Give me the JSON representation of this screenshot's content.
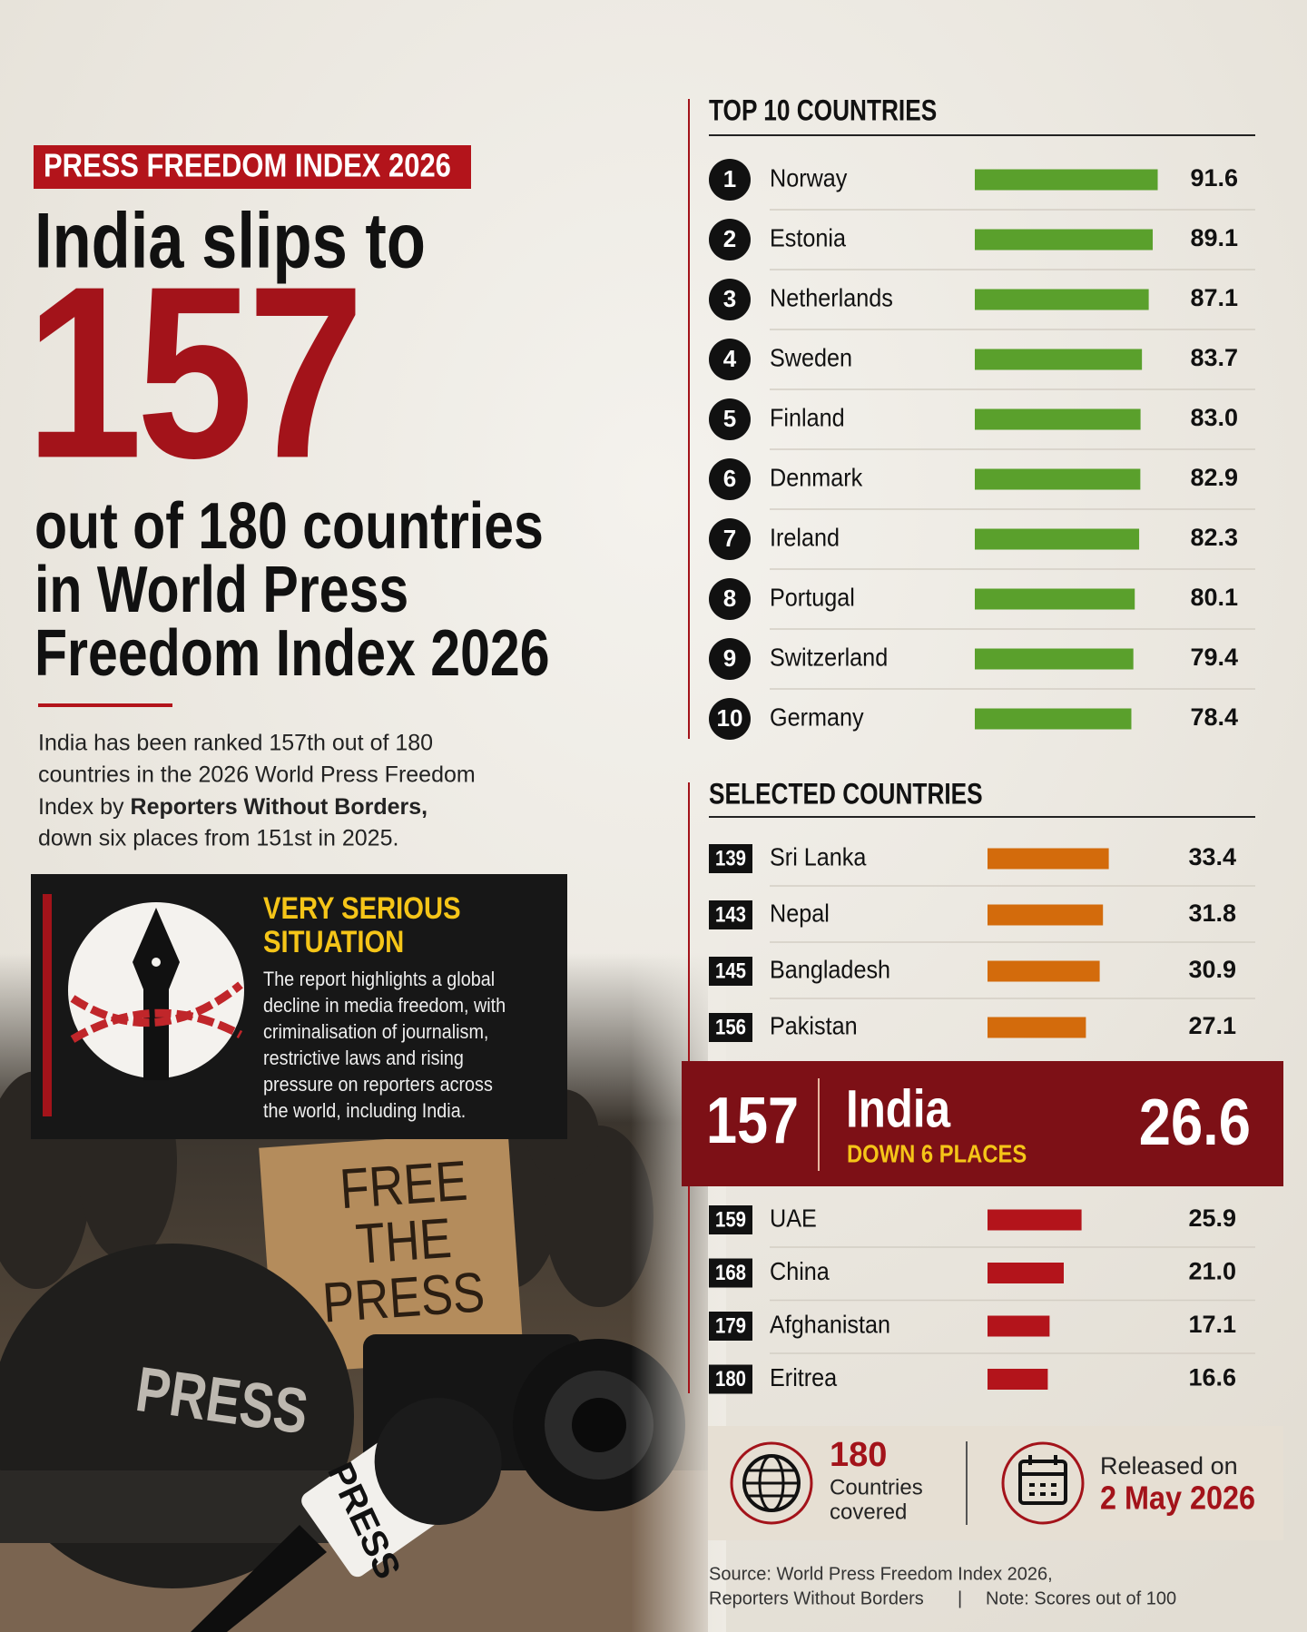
{
  "header": {
    "tag": "PRESS FREEDOM INDEX 2026",
    "headline_top": "India slips to",
    "rank": "157",
    "headline_bottom": [
      "out of 180 countries",
      "in World Press",
      "Freedom Index 2026"
    ]
  },
  "summary": [
    "India has been ranked 157th out of 180",
    "countries in the 2026 World Press Freedom",
    [
      "Index by",
      "Reporters Without Borders,"
    ],
    "down six places from 151st in 2025."
  ],
  "callout": {
    "title": [
      "VERY SERIOUS",
      "SITUATION"
    ],
    "text": [
      "The report highlights a global",
      "decline in media freedom, with",
      "criminalisation of journalism,",
      "restrictive laws and rising",
      "pressure on reporters across",
      "the world, including India."
    ]
  },
  "photo": {
    "sign": [
      "FREE",
      "THE",
      "PRESS"
    ],
    "helmet": "PRESS",
    "mic": "PRESS"
  },
  "top10": {
    "title": "TOP 10 COUNTRIES",
    "ranks": [
      1,
      2,
      3,
      4,
      5,
      6,
      7,
      8,
      9,
      10
    ],
    "countries": [
      "Norway",
      "Estonia",
      "Netherlands",
      "Sweden",
      "Finland",
      "Denmark",
      "Ireland",
      "Portugal",
      "Switzerland",
      "Germany"
    ],
    "values": [
      91.6,
      89.1,
      87.1,
      83.7,
      83.0,
      82.9,
      82.3,
      80.1,
      79.4,
      78.4
    ],
    "value_labels": [
      "91.6",
      "89.1",
      "87.1",
      "83.7",
      "83.0",
      "82.9",
      "82.3",
      "80.1",
      "79.4",
      "78.4"
    ],
    "color": "#5aa02c"
  },
  "selected": {
    "title": "SELECTED COUNTRIES",
    "ranks": [
      139,
      143,
      145,
      156,
      159,
      168,
      179,
      180
    ],
    "countries": [
      "Sri Lanka",
      "Nepal",
      "Bangladesh",
      "Pakistan",
      "UAE",
      "China",
      "Afghanistan",
      "Eritrea"
    ],
    "values": [
      33.4,
      31.8,
      30.9,
      27.1,
      25.9,
      21.0,
      17.1,
      16.6
    ],
    "value_labels": [
      "33.4",
      "31.8",
      "30.9",
      "27.1",
      "25.9",
      "21.0",
      "17.1",
      "16.6"
    ],
    "colors": [
      "#d36b0c",
      "#d36b0c",
      "#d36b0c",
      "#d36b0c",
      "#b3141b",
      "#b3141b",
      "#b3141b",
      "#b3141b"
    ]
  },
  "india": {
    "rank": 157,
    "country": "India",
    "note": "DOWN 6 PLACES",
    "value": 26.6
  },
  "footer": {
    "count": "180",
    "count_label": [
      "Countries",
      "covered"
    ],
    "released_label": "Released on",
    "released_date": "2 May 2026"
  },
  "source": [
    "Source: World Press Freedom Index 2026,",
    "Reporters Without Borders",
    "|",
    "Note: Scores out of 100"
  ]
}
